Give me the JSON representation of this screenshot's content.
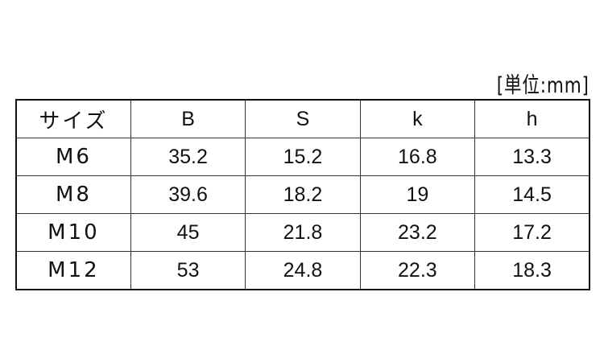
{
  "unit_label": "[単位:mm]",
  "table": {
    "headers": [
      "サイズ",
      "B",
      "S",
      "k",
      "h"
    ],
    "rows": [
      [
        "M6",
        "35.2",
        "15.2",
        "16.8",
        "13.3"
      ],
      [
        "M8",
        "39.6",
        "18.2",
        "19",
        "14.5"
      ],
      [
        "M10",
        "45",
        "21.8",
        "23.2",
        "17.2"
      ],
      [
        "M12",
        "53",
        "24.8",
        "22.3",
        "18.3"
      ]
    ]
  }
}
